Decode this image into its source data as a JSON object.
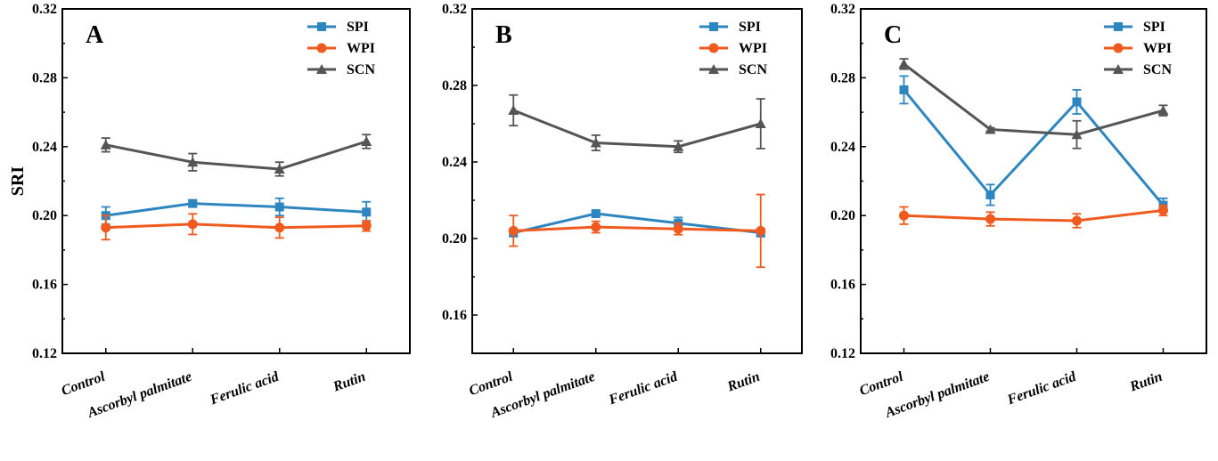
{
  "chart_data": [
    {
      "type": "line",
      "panel_label": "A",
      "ylabel": "SRI",
      "ylim": [
        0.12,
        0.32
      ],
      "yticks": [
        "0.12",
        "0.16",
        "0.20",
        "0.24",
        "0.28",
        "0.32"
      ],
      "categories": [
        "Control",
        "Ascorbyl palmitate",
        "Ferulic acid",
        "Rutin"
      ],
      "legend_position": "top-right",
      "series": [
        {
          "name": "SPI",
          "color": "#2E86C1",
          "marker": "square",
          "values": [
            0.2,
            0.207,
            0.205,
            0.202
          ],
          "errors": [
            0.005,
            0.002,
            0.005,
            0.006
          ]
        },
        {
          "name": "WPI",
          "color": "#F05A1E",
          "marker": "circle",
          "values": [
            0.193,
            0.195,
            0.193,
            0.194
          ],
          "errors": [
            0.007,
            0.006,
            0.006,
            0.003
          ]
        },
        {
          "name": "SCN",
          "color": "#555555",
          "marker": "triangle",
          "values": [
            0.241,
            0.231,
            0.227,
            0.243
          ],
          "errors": [
            0.004,
            0.005,
            0.004,
            0.004
          ]
        }
      ]
    },
    {
      "type": "line",
      "panel_label": "B",
      "ylabel": "",
      "ylim": [
        0.14,
        0.32
      ],
      "yticks": [
        "0.16",
        "0.20",
        "0.24",
        "0.28",
        "0.32"
      ],
      "categories": [
        "Control",
        "Ascorbyl palmitate",
        "Ferulic acid",
        "Rutin"
      ],
      "legend_position": "top-right",
      "series": [
        {
          "name": "SPI",
          "color": "#2E86C1",
          "marker": "square",
          "values": [
            0.203,
            0.213,
            0.208,
            0.203
          ],
          "errors": [
            0.002,
            0.001,
            0.003,
            0.002
          ]
        },
        {
          "name": "WPI",
          "color": "#F05A1E",
          "marker": "circle",
          "values": [
            0.204,
            0.206,
            0.205,
            0.204
          ],
          "errors": [
            0.008,
            0.003,
            0.003,
            0.019
          ]
        },
        {
          "name": "SCN",
          "color": "#555555",
          "marker": "triangle",
          "values": [
            0.267,
            0.25,
            0.248,
            0.26
          ],
          "errors": [
            0.008,
            0.004,
            0.003,
            0.013
          ]
        }
      ]
    },
    {
      "type": "line",
      "panel_label": "C",
      "ylabel": "",
      "ylim": [
        0.12,
        0.32
      ],
      "yticks": [
        "0.12",
        "0.16",
        "0.20",
        "0.24",
        "0.28",
        "0.32"
      ],
      "categories": [
        "Control",
        "Ascorbyl palmitate",
        "Ferulic acid",
        "Rutin"
      ],
      "legend_position": "top-right",
      "series": [
        {
          "name": "SPI",
          "color": "#2E86C1",
          "marker": "square",
          "values": [
            0.273,
            0.212,
            0.266,
            0.206
          ],
          "errors": [
            0.008,
            0.006,
            0.007,
            0.004
          ]
        },
        {
          "name": "WPI",
          "color": "#F05A1E",
          "marker": "circle",
          "values": [
            0.2,
            0.198,
            0.197,
            0.203
          ],
          "errors": [
            0.005,
            0.004,
            0.004,
            0.003
          ]
        },
        {
          "name": "SCN",
          "color": "#555555",
          "marker": "triangle",
          "values": [
            0.288,
            0.25,
            0.247,
            0.261
          ],
          "errors": [
            0.003,
            0.001,
            0.008,
            0.003
          ]
        }
      ]
    }
  ]
}
